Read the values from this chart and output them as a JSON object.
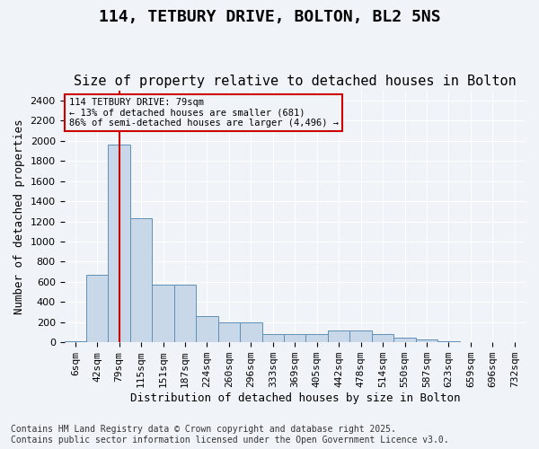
{
  "title_line1": "114, TETBURY DRIVE, BOLTON, BL2 5NS",
  "title_line2": "Size of property relative to detached houses in Bolton",
  "xlabel": "Distribution of detached houses by size in Bolton",
  "ylabel": "Number of detached properties",
  "annotation_line1": "114 TETBURY DRIVE: 79sqm",
  "annotation_line2": "← 13% of detached houses are smaller (681)",
  "annotation_line3": "86% of semi-detached houses are larger (4,496) →",
  "property_size_sqm": 79,
  "bin_labels": [
    "6sqm",
    "42sqm",
    "79sqm",
    "115sqm",
    "151sqm",
    "187sqm",
    "224sqm",
    "260sqm",
    "296sqm",
    "333sqm",
    "369sqm",
    "405sqm",
    "442sqm",
    "478sqm",
    "514sqm",
    "550sqm",
    "587sqm",
    "623sqm",
    "659sqm",
    "696sqm",
    "732sqm"
  ],
  "bar_values": [
    10,
    670,
    1960,
    1230,
    575,
    575,
    260,
    195,
    195,
    80,
    80,
    80,
    120,
    120,
    80,
    50,
    30,
    10,
    5,
    5,
    5
  ],
  "bar_color": "#c8d8e8",
  "bar_edge_color": "#6090b8",
  "vline_color": "#cc0000",
  "vline_x_index": 2,
  "annotation_box_color": "#cc0000",
  "background_color": "#f0f4f8",
  "ylim": [
    0,
    2500
  ],
  "yticks": [
    0,
    200,
    400,
    600,
    800,
    1000,
    1200,
    1400,
    1600,
    1800,
    2000,
    2200,
    2400
  ],
  "footnote": "Contains HM Land Registry data © Crown copyright and database right 2025.\nContains public sector information licensed under the Open Government Licence v3.0.",
  "title_fontsize": 13,
  "subtitle_fontsize": 11,
  "label_fontsize": 9,
  "tick_fontsize": 8,
  "footnote_fontsize": 7
}
